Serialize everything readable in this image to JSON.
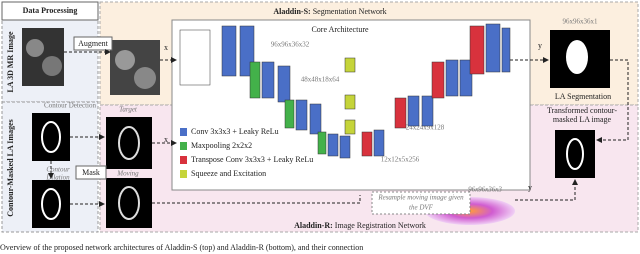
{
  "left": {
    "title": "Data Processing",
    "mr_label": "LA 3D MR Image",
    "augment": "Augment",
    "masked_label": "Contour-Masked LA Images",
    "contour_detection": "Contour Detection",
    "contour_dilation": [
      "Contour",
      "Dilation"
    ],
    "mask": "Mask",
    "target": "Target",
    "moving": "Moving"
  },
  "seg": {
    "title_bold": "Aladdin-S:",
    "title_rest": "Segmentation Network",
    "core": "Core Architecture",
    "input": "x",
    "output": "y",
    "dims": [
      "96x96x36x32",
      "48x48x18x64",
      "24x24x9x128",
      "12x12x5x256"
    ],
    "out_dim": "96x96x36x1",
    "result": "LA Segmentation"
  },
  "legend": [
    "Conv 3x3x3 + Leaky ReLu",
    "Maxpooling 2x2x2",
    "Transpose Conv 3x3x3 + Leaky ReLu",
    "Squeeze and Excitation"
  ],
  "reg": {
    "title_bold": "Aladdin-R:",
    "title_rest": "Image Registration Network",
    "input": "x",
    "output": "y",
    "dvf_dim": "96x96x36x3",
    "resample": [
      "Resample moving image given",
      "the DVF"
    ],
    "transformed": [
      "Transformed contour-",
      "masked LA image"
    ]
  },
  "caption": "Overview of the proposed network architectures of Aladdin-S (top) and Aladdin-R (bottom), and their connection"
}
